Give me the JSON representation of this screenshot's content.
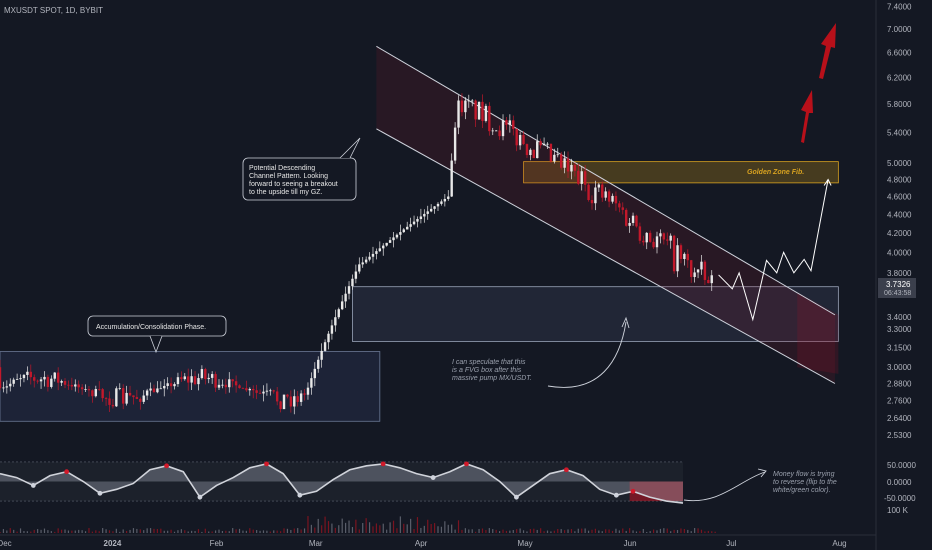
{
  "header": {
    "symbol": "MXUSDT SPOT, 1D, BYBIT"
  },
  "colors": {
    "background": "#141823",
    "up": "#e8e8e8",
    "down": "#c2182b",
    "channel": "#cfd3dc",
    "golden_zone": "#d8a220",
    "fvg": "#7f8aa6",
    "arrow": "#c4101c",
    "oscillator": "#d0d3da"
  },
  "price_axis": {
    "ticks": [
      "7.4000",
      "7.0000",
      "6.6000",
      "6.2000",
      "5.8000",
      "5.4000",
      "5.0000",
      "4.8000",
      "4.6000",
      "4.4000",
      "4.2000",
      "4.0000",
      "3.8000",
      "3.6000",
      "3.4000",
      "3.3000",
      "3.1500",
      "3.0000",
      "2.8800",
      "2.7600",
      "2.6400",
      "2.5300"
    ],
    "current_price": "3.7326",
    "countdown": "06:43:58"
  },
  "oscillator_axis": {
    "ticks": [
      "50.0000",
      "0.0000",
      "-50.0000"
    ],
    "volume_label": "100 K"
  },
  "time_axis": {
    "labels": [
      "Dec",
      "2024",
      "Feb",
      "Mar",
      "Apr",
      "May",
      "Jun",
      "Jul",
      "Aug"
    ]
  },
  "annotations": {
    "channel_note": [
      "Potential Descending",
      "Channel Pattern. Looking",
      "forward to seeing a breakout",
      "to the upside till my GZ."
    ],
    "accumulation_note": "Accumulation/Consolidation Phase.",
    "golden_zone_label": "Golden Zone Fib.",
    "fvg_note": [
      "I can speculate that this",
      "is a FVG box after this",
      "massive pump MX/USDT."
    ],
    "money_flow_note": [
      "Money flow is trying",
      "to reverse (flip to the",
      "white/green color)."
    ]
  },
  "chart_data": {
    "type": "candlestick",
    "title": "",
    "xlabel": "",
    "ylabel": "",
    "scale": "log",
    "ylim": [
      2.5,
      7.45
    ],
    "xlim": [
      "2023-11-30",
      "2024-08-12"
    ],
    "phases": [
      {
        "from": "2023-11-30",
        "to": "2024-02-28",
        "low": 2.7,
        "high": 3.12,
        "trend": "sideways"
      },
      {
        "from": "2024-02-28",
        "to": "2024-03-15",
        "low": 2.85,
        "high": 3.95,
        "trend": "pump"
      },
      {
        "from": "2024-03-15",
        "to": "2024-04-09",
        "low": 3.9,
        "high": 4.6,
        "trend": "rally"
      },
      {
        "from": "2024-04-09",
        "to": "2024-04-12",
        "low": 4.6,
        "high": 5.9,
        "trend": "spike"
      },
      {
        "from": "2024-04-12",
        "to": "2024-06-26",
        "low": 3.62,
        "high": 5.85,
        "trend": "descending"
      }
    ],
    "last_close": 3.7326,
    "channel": {
      "upper": [
        [
          "2024-03-19",
          6.7
        ],
        [
          "2024-07-31",
          3.42
        ]
      ],
      "lower": [
        [
          "2024-03-19",
          5.45
        ],
        [
          "2024-07-31",
          2.88
        ]
      ]
    },
    "zones": [
      {
        "name": "Golden Zone Fib.",
        "from": "2024-05-01",
        "to": "2024-08-01",
        "low": 4.76,
        "high": 5.02
      },
      {
        "name": "FVG box",
        "from": "2024-03-12",
        "to": "2024-08-01",
        "low": 3.2,
        "high": 3.67
      },
      {
        "name": "Accumulation/Consolidation Phase.",
        "from": "2023-11-30",
        "to": "2024-03-20",
        "low": 2.62,
        "high": 3.12
      }
    ],
    "projection": [
      [
        "2024-06-27",
        3.78
      ],
      [
        "2024-07-01",
        3.65
      ],
      [
        "2024-07-03",
        3.8
      ],
      [
        "2024-07-07",
        3.38
      ],
      [
        "2024-07-11",
        3.92
      ],
      [
        "2024-07-14",
        3.8
      ],
      [
        "2024-07-16",
        4.0
      ],
      [
        "2024-07-19",
        3.8
      ],
      [
        "2024-07-22",
        3.93
      ],
      [
        "2024-07-24",
        3.82
      ],
      [
        "2024-07-29",
        4.8
      ]
    ],
    "oscillator": {
      "name": "Money flow",
      "ylim": [
        -60,
        60
      ],
      "values": [
        20,
        10,
        -10,
        15,
        25,
        0,
        -30,
        -20,
        -5,
        30,
        40,
        25,
        -40,
        -10,
        10,
        35,
        45,
        20,
        -35,
        -25,
        5,
        30,
        40,
        45,
        35,
        20,
        10,
        25,
        45,
        30,
        0,
        -40,
        -10,
        20,
        30,
        15,
        -20,
        -35,
        -25,
        -40,
        -50,
        -55
      ]
    }
  }
}
